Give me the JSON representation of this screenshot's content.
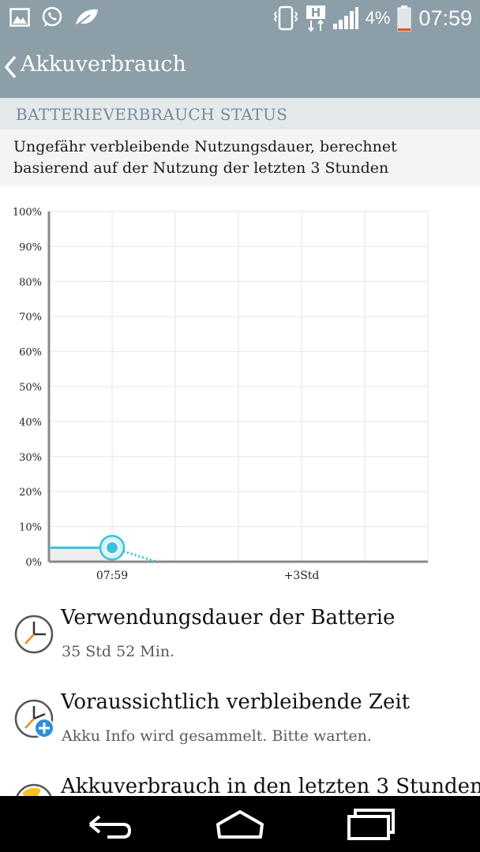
{
  "status_bar": {
    "battery_percent": "4%",
    "time": "07:59",
    "network_badge": "H",
    "left_icons": [
      "gallery-icon",
      "whatsapp-icon",
      "leaf-icon"
    ],
    "right_icons": [
      "vibrate-icon",
      "data-h-icon",
      "signal-icon",
      "battery-icon"
    ]
  },
  "header": {
    "title": "Akkuverbrauch"
  },
  "section": {
    "title": "BATTERIEVERBRAUCH STATUS",
    "description": "Ungefähr verbleibende Nutzungsdauer, berechnet basierend auf der Nutzung der letzten 3 Stunden"
  },
  "chart_data": {
    "type": "line",
    "ylim": [
      0,
      100
    ],
    "y_ticks": [
      "0%",
      "10%",
      "20%",
      "30%",
      "40%",
      "50%",
      "60%",
      "70%",
      "80%",
      "90%",
      "100%"
    ],
    "x_labels": [
      {
        "text": "07:59",
        "pos": 1
      },
      {
        "text": "+3Std",
        "pos": 4
      }
    ],
    "x_range": [
      0,
      6
    ],
    "history": [
      [
        0,
        4
      ],
      [
        1,
        4
      ]
    ],
    "current": {
      "x": 1,
      "y": 4
    },
    "projection": [
      [
        1,
        4
      ],
      [
        1.7,
        0
      ]
    ],
    "colors": {
      "line": "#38c2dc",
      "axis": "#8a8a8a",
      "grid": "#e6e6e6",
      "fill": "#eeeeee"
    }
  },
  "list": [
    {
      "title": "Verwendungsdauer der Batterie",
      "subtitle": "35 Std 52 Min.",
      "icon": "clock-icon"
    },
    {
      "title": "Voraussichtlich verbleibende Zeit",
      "subtitle": "Akku Info wird gesammelt. Bitte warten.",
      "icon": "clock-add-icon"
    },
    {
      "title": "Akkuverbrauch in den letzten 3 Stunden",
      "subtitle": "",
      "icon": "clock-partial-icon"
    }
  ],
  "nav": {
    "buttons": [
      "back-icon",
      "home-icon",
      "recents-icon"
    ]
  }
}
